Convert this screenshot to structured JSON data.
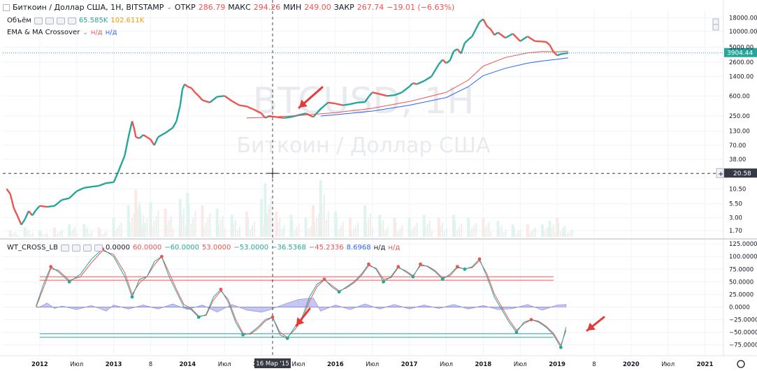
{
  "header": {
    "symbol_title": "Биткоин / Доллар США, 1Н, BITSTAMP",
    "ohlc": [
      {
        "label": "ОТКР",
        "value": "286.79"
      },
      {
        "label": "МАКС",
        "value": "294.26"
      },
      {
        "label": "МИН",
        "value": "249.00"
      },
      {
        "label": "ЗАКР",
        "value": "267.74"
      }
    ],
    "change": "−19.01 (−6.63%)"
  },
  "volume_legend": {
    "label": "Объём",
    "value1": "65.585K",
    "value2": "102.611K"
  },
  "ema_legend": {
    "label": "EMA & MA Crossover",
    "value1": "н/д",
    "value2": "н/д"
  },
  "wt_legend": {
    "label": "WT_CROSS_LB",
    "values": [
      {
        "text": "0.0000",
        "color": "#131722"
      },
      {
        "text": "60.0000",
        "color": "#ef5350"
      },
      {
        "text": "−60.0000",
        "color": "#26a69a"
      },
      {
        "text": "53.0000",
        "color": "#ef5350"
      },
      {
        "text": "−53.0000",
        "color": "#26a69a"
      },
      {
        "text": "−36.5368",
        "color": "#26a69a"
      },
      {
        "text": "−45.2336",
        "color": "#ef5350"
      },
      {
        "text": "8.6968",
        "color": "#2962ff"
      },
      {
        "text": "н/д",
        "color": "#131722"
      },
      {
        "text": "н/д",
        "color": "#ef5350"
      }
    ]
  },
  "watermark": {
    "ticker": "BTCUSD, 1H",
    "name": "Биткоин / Доллар США"
  },
  "price_label": "3904.44",
  "crosshair": {
    "price": "20.58",
    "date": "16 Мар '15"
  },
  "colors": {
    "up": "#26a69a",
    "down": "#ef5350",
    "ema_fast": "#ef5350",
    "ema_slow": "#2962ff",
    "wt1": "#26a69a",
    "wt2": "#ef5350",
    "hist": "#9598e6",
    "last_price": "#26a69a"
  },
  "icons": [
    "chevron-down-icon",
    "settings-gear-icon",
    "scroll-up-icon",
    "scroll-down-icon",
    "crosshair-icon",
    "plus-icon"
  ],
  "chart_data": [
    {
      "type": "line",
      "title": "Биткоин / Доллар США, 1Н, BITSTAMP",
      "yscale": "log",
      "ylim": [
        1.3,
        24000
      ],
      "yticks": [
        {
          "v": 18000,
          "t": "18000.00"
        },
        {
          "v": 10000,
          "t": "10000.00"
        },
        {
          "v": 5000,
          "t": "5000.00"
        },
        {
          "v": 2600,
          "t": "2600.00"
        },
        {
          "v": 1400,
          "t": "1400.00"
        },
        {
          "v": 600,
          "t": "600.00"
        },
        {
          "v": 250,
          "t": "250.00"
        },
        {
          "v": 130,
          "t": "130.00"
        },
        {
          "v": 70,
          "t": "70.00"
        },
        {
          "v": 38,
          "t": "38.00"
        },
        {
          "v": 10.5,
          "t": "10.50"
        },
        {
          "v": 5.5,
          "t": "5.50"
        },
        {
          "v": 3,
          "t": "3.00"
        },
        {
          "v": 1.7,
          "t": "1.70"
        }
      ],
      "xlim": [
        2011.5,
        2021.25
      ],
      "xticks": [
        {
          "v": 2012.0,
          "t": "2012",
          "bold": true
        },
        {
          "v": 2012.5,
          "t": "Июл",
          "bold": false
        },
        {
          "v": 2013.0,
          "t": "2013",
          "bold": true
        },
        {
          "v": 2013.5,
          "t": "8",
          "bold": false
        },
        {
          "v": 2014.0,
          "t": "2014",
          "bold": true
        },
        {
          "v": 2014.5,
          "t": "Июл",
          "bold": false
        },
        {
          "v": 2015.0,
          "t": "2015",
          "bold": true
        },
        {
          "v": 2015.5,
          "t": "Июл",
          "bold": false
        },
        {
          "v": 2016.0,
          "t": "2016",
          "bold": true
        },
        {
          "v": 2016.5,
          "t": "Июл",
          "bold": false
        },
        {
          "v": 2017.0,
          "t": "2017",
          "bold": true
        },
        {
          "v": 2017.5,
          "t": "Июл",
          "bold": false
        },
        {
          "v": 2018.0,
          "t": "2018",
          "bold": true
        },
        {
          "v": 2018.5,
          "t": "Июл",
          "bold": false
        },
        {
          "v": 2019.0,
          "t": "2019",
          "bold": true
        },
        {
          "v": 2019.5,
          "t": "8",
          "bold": false
        },
        {
          "v": 2020.0,
          "t": "2020",
          "bold": true
        },
        {
          "v": 2020.5,
          "t": "Июл",
          "bold": false
        },
        {
          "v": 2021.0,
          "t": "2021",
          "bold": true
        }
      ],
      "series": [
        {
          "name": "BTCUSD",
          "x": [
            2011.55,
            2011.6,
            2011.65,
            2011.7,
            2011.75,
            2011.8,
            2011.85,
            2011.9,
            2011.95,
            2012.0,
            2012.1,
            2012.2,
            2012.3,
            2012.4,
            2012.5,
            2012.6,
            2012.7,
            2012.8,
            2012.9,
            2013.0,
            2013.05,
            2013.1,
            2013.15,
            2013.2,
            2013.25,
            2013.28,
            2013.3,
            2013.35,
            2013.4,
            2013.45,
            2013.5,
            2013.55,
            2013.6,
            2013.7,
            2013.8,
            2013.85,
            2013.9,
            2013.93,
            2013.96,
            2014.0,
            2014.05,
            2014.1,
            2014.15,
            2014.2,
            2014.3,
            2014.4,
            2014.5,
            2014.6,
            2014.7,
            2014.8,
            2014.9,
            2015.0,
            2015.05,
            2015.1,
            2015.2,
            2015.3,
            2015.4,
            2015.5,
            2015.6,
            2015.7,
            2015.8,
            2015.9,
            2016.0,
            2016.1,
            2016.2,
            2016.3,
            2016.4,
            2016.45,
            2016.5,
            2016.6,
            2016.7,
            2016.8,
            2016.9,
            2017.0,
            2017.05,
            2017.1,
            2017.2,
            2017.3,
            2017.4,
            2017.45,
            2017.5,
            2017.55,
            2017.6,
            2017.65,
            2017.7,
            2017.75,
            2017.8,
            2017.85,
            2017.9,
            2017.95,
            2018.0,
            2018.05,
            2018.1,
            2018.15,
            2018.2,
            2018.3,
            2018.4,
            2018.5,
            2018.6,
            2018.7,
            2018.8,
            2018.85,
            2018.9,
            2018.95,
            2019.0,
            2019.05,
            2019.1,
            2019.15
          ],
          "y": [
            10.5,
            8.5,
            4.5,
            3.2,
            2.2,
            2.8,
            4.0,
            3.3,
            4.2,
            5.0,
            4.8,
            5.0,
            6.5,
            7.0,
            9.5,
            11.0,
            11.5,
            12.0,
            13.5,
            14.0,
            20,
            30,
            45,
            100,
            200,
            140,
            100,
            95,
            110,
            100,
            90,
            70,
            100,
            120,
            150,
            200,
            400,
            800,
            1000,
            900,
            850,
            700,
            600,
            500,
            450,
            580,
            600,
            480,
            400,
            380,
            330,
            280,
            230,
            250,
            240,
            230,
            240,
            260,
            280,
            240,
            340,
            450,
            430,
            400,
            420,
            450,
            460,
            580,
            700,
            650,
            600,
            620,
            700,
            900,
            1050,
            1000,
            1150,
            1400,
            2400,
            2900,
            2500,
            2800,
            4200,
            4600,
            3800,
            6000,
            7000,
            8000,
            11000,
            15000,
            17000,
            12500,
            11000,
            8500,
            9500,
            7500,
            9000,
            6500,
            8000,
            6500,
            6400,
            6300,
            5500,
            4100,
            3500,
            3700,
            3800,
            3900
          ]
        },
        {
          "name": "EMA",
          "x": [
            2014.8,
            2015.0,
            2015.5,
            2016.0,
            2016.5,
            2017.0,
            2017.5,
            2017.8,
            2018.0,
            2018.3,
            2018.6,
            2018.8,
            2019.0,
            2019.15
          ],
          "y": [
            230,
            235,
            255,
            290,
            350,
            470,
            700,
            1200,
            2200,
            3200,
            3900,
            4150,
            4100,
            4200
          ]
        },
        {
          "name": "MA",
          "x": [
            2015.8,
            2016.0,
            2016.5,
            2017.0,
            2017.5,
            2017.8,
            2018.0,
            2018.3,
            2018.6,
            2018.8,
            2019.0,
            2019.15
          ],
          "y": [
            250,
            265,
            310,
            400,
            560,
            900,
            1450,
            2000,
            2500,
            2750,
            2950,
            3150
          ]
        }
      ]
    },
    {
      "type": "bar",
      "title": "Объём",
      "x": [
        2011.6,
        2011.8,
        2012.0,
        2012.2,
        2012.4,
        2012.6,
        2012.8,
        2013.0,
        2013.2,
        2013.3,
        2013.35,
        2013.5,
        2013.7,
        2013.9,
        2014.0,
        2014.2,
        2014.4,
        2014.6,
        2014.8,
        2015.0,
        2015.05,
        2015.2,
        2015.4,
        2015.6,
        2015.7,
        2015.8,
        2016.0,
        2016.2,
        2016.4,
        2016.6,
        2016.8,
        2017.0,
        2017.2,
        2017.4,
        2017.6,
        2017.8,
        2018.0,
        2018.2,
        2018.4,
        2018.6,
        2018.8,
        2018.9,
        2019.0,
        2019.1
      ],
      "values": [
        0.1,
        0.15,
        0.1,
        0.15,
        0.2,
        0.2,
        0.15,
        0.3,
        0.5,
        0.75,
        0.5,
        0.55,
        0.45,
        0.6,
        0.7,
        0.5,
        0.45,
        0.35,
        0.4,
        0.6,
        0.85,
        0.4,
        0.35,
        0.3,
        0.5,
        0.9,
        0.4,
        0.3,
        0.5,
        0.35,
        0.3,
        0.3,
        0.35,
        0.3,
        0.35,
        0.3,
        0.3,
        0.25,
        0.2,
        0.2,
        0.2,
        0.25,
        0.3,
        0.15
      ]
    },
    {
      "type": "line",
      "title": "WT_CROSS_LB",
      "ylim": [
        -88,
        128
      ],
      "yticks": [
        {
          "v": 125,
          "t": "125.0000"
        },
        {
          "v": 100,
          "t": "100.0000"
        },
        {
          "v": 75,
          "t": "75.0000"
        },
        {
          "v": 50,
          "t": "50.0000"
        },
        {
          "v": 25,
          "t": "25.0000"
        },
        {
          "v": 0,
          "t": "0.0000"
        },
        {
          "v": -25,
          "t": "−25.0000"
        },
        {
          "v": -50,
          "t": "−50.0000"
        },
        {
          "v": -75,
          "t": "−75.0000"
        }
      ],
      "levels": [
        {
          "v": 60,
          "color": "#ef5350"
        },
        {
          "v": 53,
          "color": "#ef5350"
        },
        {
          "v": 0,
          "color": "#787b86"
        },
        {
          "v": -53,
          "color": "#26a69a"
        },
        {
          "v": -60,
          "color": "#26a69a"
        }
      ],
      "series": [
        {
          "name": "WT1",
          "x": [
            2011.95,
            2012.05,
            2012.15,
            2012.25,
            2012.4,
            2012.55,
            2012.7,
            2012.85,
            2013.0,
            2013.15,
            2013.25,
            2013.35,
            2013.45,
            2013.55,
            2013.65,
            2013.75,
            2013.85,
            2013.95,
            2014.05,
            2014.15,
            2014.25,
            2014.35,
            2014.45,
            2014.55,
            2014.65,
            2014.75,
            2014.85,
            2014.95,
            2015.05,
            2015.15,
            2015.25,
            2015.35,
            2015.45,
            2015.55,
            2015.65,
            2015.75,
            2015.85,
            2015.95,
            2016.05,
            2016.15,
            2016.25,
            2016.35,
            2016.45,
            2016.55,
            2016.65,
            2016.75,
            2016.85,
            2016.95,
            2017.05,
            2017.15,
            2017.25,
            2017.35,
            2017.45,
            2017.55,
            2017.65,
            2017.75,
            2017.85,
            2017.95,
            2018.05,
            2018.15,
            2018.25,
            2018.35,
            2018.45,
            2018.55,
            2018.65,
            2018.75,
            2018.85,
            2018.95,
            2019.05,
            2019.12
          ],
          "y": [
            2,
            45,
            80,
            70,
            50,
            65,
            95,
            115,
            100,
            60,
            20,
            55,
            60,
            90,
            100,
            60,
            30,
            0,
            -5,
            -20,
            -15,
            20,
            35,
            10,
            -30,
            -55,
            -52,
            -40,
            -25,
            -20,
            -55,
            -62,
            -40,
            -20,
            20,
            45,
            55,
            40,
            30,
            40,
            50,
            65,
            85,
            75,
            50,
            60,
            80,
            70,
            60,
            85,
            80,
            70,
            55,
            65,
            80,
            75,
            80,
            95,
            60,
            20,
            -5,
            -30,
            -50,
            -30,
            -25,
            -30,
            -40,
            -55,
            -80,
            -40
          ]
        },
        {
          "name": "WT2",
          "x": [
            2011.95,
            2012.05,
            2012.15,
            2012.25,
            2012.4,
            2012.55,
            2012.7,
            2012.85,
            2013.0,
            2013.15,
            2013.25,
            2013.35,
            2013.45,
            2013.55,
            2013.65,
            2013.75,
            2013.85,
            2013.95,
            2014.05,
            2014.15,
            2014.25,
            2014.35,
            2014.45,
            2014.55,
            2014.65,
            2014.75,
            2014.85,
            2014.95,
            2015.05,
            2015.15,
            2015.25,
            2015.35,
            2015.45,
            2015.55,
            2015.65,
            2015.75,
            2015.85,
            2015.95,
            2016.05,
            2016.15,
            2016.25,
            2016.35,
            2016.45,
            2016.55,
            2016.65,
            2016.75,
            2016.85,
            2016.95,
            2017.05,
            2017.15,
            2017.25,
            2017.35,
            2017.45,
            2017.55,
            2017.65,
            2017.75,
            2017.85,
            2017.95,
            2018.05,
            2018.15,
            2018.25,
            2018.35,
            2018.45,
            2018.55,
            2018.65,
            2018.75,
            2018.85,
            2018.95,
            2019.05,
            2019.12
          ],
          "y": [
            0,
            38,
            76,
            73,
            53,
            60,
            88,
            112,
            104,
            68,
            25,
            48,
            60,
            84,
            100,
            68,
            35,
            5,
            -3,
            -18,
            -17,
            14,
            32,
            15,
            -24,
            -52,
            -54,
            -43,
            -28,
            -20,
            -50,
            -60,
            -45,
            -25,
            12,
            40,
            54,
            43,
            32,
            38,
            48,
            62,
            82,
            77,
            55,
            58,
            78,
            72,
            62,
            82,
            81,
            72,
            58,
            62,
            78,
            76,
            78,
            92,
            66,
            26,
            0,
            -25,
            -46,
            -33,
            -25,
            -28,
            -38,
            -52,
            -76,
            -46
          ]
        },
        {
          "name": "Hist",
          "x": [
            2012.0,
            2012.1,
            2012.2,
            2012.3,
            2012.5,
            2012.7,
            2012.9,
            2013.0,
            2013.2,
            2013.4,
            2013.6,
            2013.8,
            2014.0,
            2014.2,
            2014.4,
            2014.6,
            2014.8,
            2015.0,
            2015.1,
            2015.3,
            2015.5,
            2015.7,
            2015.8,
            2016.0,
            2016.2,
            2016.4,
            2016.6,
            2016.8,
            2017.0,
            2017.2,
            2017.4,
            2017.6,
            2017.8,
            2018.0,
            2018.2,
            2018.4,
            2018.6,
            2018.8,
            2019.0,
            2019.12
          ],
          "y": [
            0,
            8,
            -3,
            2,
            -5,
            3,
            -8,
            4,
            -4,
            4,
            -4,
            6,
            -5,
            4,
            -10,
            5,
            -6,
            -10,
            -6,
            5,
            15,
            18,
            -8,
            4,
            -5,
            6,
            -4,
            5,
            -4,
            4,
            -3,
            5,
            -4,
            3,
            -5,
            -3,
            5,
            -6,
            4,
            5
          ]
        }
      ]
    }
  ]
}
